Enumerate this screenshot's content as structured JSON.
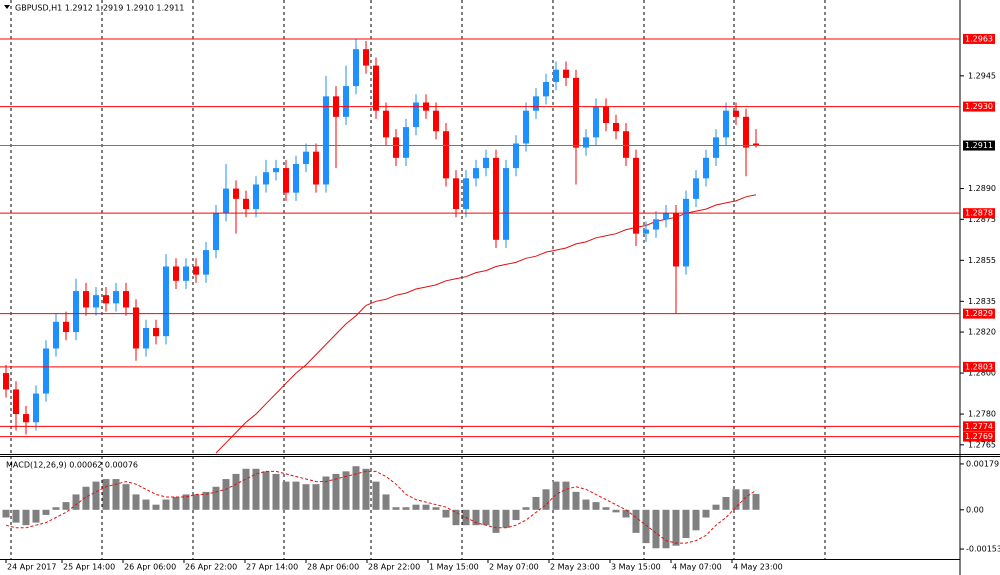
{
  "chart_data": {
    "type": "candlestick",
    "title": "GBPUSD,H1  1.2912 1.2919 1.2910 1.2911",
    "colors": {
      "up": "#1e90ff",
      "down": "#ff0000",
      "ma": "#e01010",
      "level": "#ff0000",
      "price_line": "#4682b4"
    },
    "ylim": [
      1.2761,
      1.2982
    ],
    "yticks": [
      1.2945,
      {
        "value": 1.289,
        "label": "1.2890"
      },
      1.2875,
      1.2855,
      1.2835,
      {
        "value": 1.282,
        "label": "1.2820"
      },
      {
        "value": 1.28,
        "label": "1.2800"
      },
      {
        "value": 1.278,
        "label": "1.2780"
      },
      1.2765
    ],
    "xlim": [
      -0.6,
      95.4
    ],
    "xticks": [
      {
        "value": 0,
        "label": "24 Apr 2017"
      },
      {
        "value": 5.6,
        "label": "25 Apr 14:00"
      },
      {
        "value": 11.7,
        "label": "26 Apr 06:00"
      },
      {
        "value": 17.8,
        "label": "26 Apr 22:00"
      },
      {
        "value": 23.9,
        "label": "27 Apr 14:00"
      },
      {
        "value": 30,
        "label": "28 Apr 06:00"
      },
      {
        "value": 36.1,
        "label": "28 Apr 22:00"
      },
      {
        "value": 42.2,
        "label": "1 May 15:00"
      },
      {
        "value": 48.2,
        "label": "2 May 07:00"
      },
      {
        "value": 54.3,
        "label": "2 May 23:00"
      },
      {
        "value": 60.4,
        "label": "3 May 15:00"
      },
      {
        "value": 66.5,
        "label": "4 May 07:00"
      },
      {
        "value": 72.6,
        "label": "4 May 23:00"
      }
    ],
    "levels": [
      1.2963,
      {
        "value": 1.293,
        "label": "1.2930"
      },
      {
        "value": 1.2878,
        "label": "1.2878"
      },
      1.2829,
      1.2803,
      1.2774,
      1.2769
    ],
    "price_line": 1.2911,
    "candles": [
      [
        1.28,
        1.2804,
        1.2788,
        1.2792
      ],
      [
        1.2792,
        1.2796,
        1.2772,
        1.278
      ],
      [
        1.278,
        1.2784,
        1.277,
        1.2776
      ],
      [
        1.2776,
        1.2794,
        1.2772,
        1.279
      ],
      [
        1.279,
        1.2816,
        1.2786,
        1.2812
      ],
      [
        1.2812,
        1.2829,
        1.2808,
        1.2825
      ],
      [
        1.2825,
        1.283,
        1.2816,
        1.282
      ],
      [
        1.282,
        1.2846,
        1.2816,
        1.284
      ],
      [
        1.284,
        1.2844,
        1.2828,
        1.2832
      ],
      [
        1.2832,
        1.2842,
        1.2828,
        1.2838
      ],
      [
        1.2838,
        1.2842,
        1.283,
        1.2834
      ],
      [
        1.2834,
        1.2844,
        1.283,
        1.284
      ],
      [
        1.284,
        1.2844,
        1.2828,
        1.2832
      ],
      [
        1.2832,
        1.2836,
        1.2806,
        1.2812
      ],
      [
        1.2812,
        1.2826,
        1.2808,
        1.2822
      ],
      [
        1.2822,
        1.2826,
        1.2814,
        1.2818
      ],
      [
        1.2818,
        1.2858,
        1.2814,
        1.2852
      ],
      [
        1.2852,
        1.2856,
        1.2841,
        1.2845
      ],
      [
        1.2845,
        1.2856,
        1.2841,
        1.2852
      ],
      [
        1.2852,
        1.2856,
        1.2844,
        1.2848
      ],
      [
        1.2848,
        1.2864,
        1.2844,
        1.286
      ],
      [
        1.286,
        1.2882,
        1.2856,
        1.2878
      ],
      [
        1.2878,
        1.2902,
        1.2874,
        1.289
      ],
      [
        1.289,
        1.2894,
        1.2868,
        1.2885
      ],
      [
        1.2885,
        1.2889,
        1.2876,
        1.288
      ],
      [
        1.288,
        1.2896,
        1.2876,
        1.2892
      ],
      [
        1.2892,
        1.2904,
        1.2888,
        1.2898
      ],
      [
        1.2898,
        1.2904,
        1.2894,
        1.29
      ],
      [
        1.29,
        1.2904,
        1.2884,
        1.2888
      ],
      [
        1.2888,
        1.2906,
        1.2884,
        1.2902
      ],
      [
        1.2902,
        1.2912,
        1.2898,
        1.2908
      ],
      [
        1.2908,
        1.2912,
        1.2888,
        1.2892
      ],
      [
        1.2892,
        1.2945,
        1.2888,
        1.2935
      ],
      [
        1.2935,
        1.294,
        1.29,
        1.2925
      ],
      [
        1.2925,
        1.295,
        1.2921,
        1.294
      ],
      [
        1.294,
        1.2963,
        1.2936,
        1.2958
      ],
      [
        1.2958,
        1.2962,
        1.2946,
        1.295
      ],
      [
        1.295,
        1.2954,
        1.2924,
        1.2928
      ],
      [
        1.2928,
        1.2932,
        1.2911,
        1.2915
      ],
      [
        1.2915,
        1.2919,
        1.2901,
        1.2905
      ],
      [
        1.2905,
        1.2924,
        1.2901,
        1.292
      ],
      [
        1.292,
        1.2936,
        1.2916,
        1.2932
      ],
      [
        1.2932,
        1.2936,
        1.2924,
        1.2928
      ],
      [
        1.2928,
        1.2932,
        1.2914,
        1.2918
      ],
      [
        1.2918,
        1.2922,
        1.2891,
        1.2895
      ],
      [
        1.2895,
        1.2899,
        1.2876,
        1.288
      ],
      [
        1.288,
        1.2899,
        1.2876,
        1.2895
      ],
      [
        1.2895,
        1.2904,
        1.2891,
        1.29
      ],
      [
        1.29,
        1.2909,
        1.2896,
        1.2905
      ],
      [
        1.2905,
        1.2909,
        1.2861,
        1.2865
      ],
      [
        1.2865,
        1.2904,
        1.2861,
        1.29
      ],
      [
        1.29,
        1.2916,
        1.2896,
        1.2912
      ],
      [
        1.2912,
        1.2932,
        1.2908,
        1.2928
      ],
      [
        1.2928,
        1.2939,
        1.2924,
        1.2935
      ],
      [
        1.2935,
        1.2946,
        1.2931,
        1.2942
      ],
      [
        1.2942,
        1.2952,
        1.2938,
        1.2948
      ],
      [
        1.2948,
        1.2952,
        1.294,
        1.2944
      ],
      [
        1.2944,
        1.2948,
        1.2892,
        1.291
      ],
      [
        1.291,
        1.2919,
        1.2906,
        1.2915
      ],
      [
        1.2915,
        1.2934,
        1.2911,
        1.293
      ],
      [
        1.293,
        1.2934,
        1.2918,
        1.2922
      ],
      [
        1.2922,
        1.2926,
        1.2914,
        1.2918
      ],
      [
        1.2918,
        1.2922,
        1.2901,
        1.2905
      ],
      [
        1.2905,
        1.2909,
        1.2862,
        1.2868
      ],
      [
        1.2868,
        1.2874,
        1.2864,
        1.287
      ],
      [
        1.287,
        1.2879,
        1.2866,
        1.2875
      ],
      [
        1.2875,
        1.2882,
        1.2871,
        1.2878
      ],
      [
        1.2878,
        1.2882,
        1.2829,
        1.2852
      ],
      [
        1.2852,
        1.2889,
        1.2848,
        1.2885
      ],
      [
        1.2885,
        1.2899,
        1.2881,
        1.2895
      ],
      [
        1.2895,
        1.2909,
        1.2891,
        1.2905
      ],
      [
        1.2905,
        1.2919,
        1.2901,
        1.2915
      ],
      [
        1.2915,
        1.2932,
        1.2911,
        1.2928
      ],
      [
        1.2928,
        1.2932,
        1.2921,
        1.2925
      ],
      [
        1.2925,
        1.2929,
        1.2896,
        1.291
      ],
      [
        1.2912,
        1.2919,
        1.291,
        1.2911
      ]
    ],
    "ma": [
      null,
      null,
      null,
      null,
      null,
      null,
      null,
      null,
      null,
      null,
      null,
      null,
      null,
      null,
      null,
      null,
      null,
      null,
      null,
      null,
      null,
      1.2761,
      1.2766,
      1.2771,
      1.2776,
      1.278,
      1.2785,
      1.279,
      1.2795,
      1.28,
      1.2804,
      1.2809,
      1.2814,
      1.2819,
      1.2824,
      1.2828,
      1.2833,
      1.2835,
      1.2836,
      1.2838,
      1.2839,
      1.2841,
      1.2842,
      1.2843,
      1.2845,
      1.2846,
      1.2847,
      1.2849,
      1.285,
      1.2852,
      1.2853,
      1.2854,
      1.2856,
      1.2857,
      1.2859,
      1.286,
      1.2861,
      1.2863,
      1.2864,
      1.2866,
      1.2867,
      1.2868,
      1.287,
      1.2871,
      1.2872,
      1.2874,
      1.2875,
      1.2876,
      1.2878,
      1.2879,
      1.288,
      1.2882,
      1.2883,
      1.2884,
      1.2886,
      1.2887
    ],
    "macd": {
      "label": "MACD(12,26,9) 0.00062 0.00076",
      "ylim": [
        -0.00188,
        0.00206
      ],
      "yticks": [
        0.00179,
        {
          "value": 0,
          "label": "0.00"
        },
        -0.00153
      ],
      "hist_color": "#808080",
      "signal_color": "#e01010",
      "hist": [
        -0.0003,
        -0.0005,
        -0.0006,
        -0.0005,
        -0.0002,
        0.0001,
        0.0003,
        0.0006,
        0.0009,
        0.0011,
        0.0012,
        0.0012,
        0.001,
        0.0006,
        0.0004,
        0.0002,
        0.0004,
        0.0005,
        0.0006,
        0.0006,
        0.0007,
        0.0009,
        0.0012,
        0.0014,
        0.0016,
        0.0016,
        0.0015,
        0.0014,
        0.0011,
        0.0011,
        0.001,
        0.001,
        0.0013,
        0.0014,
        0.0015,
        0.0017,
        0.0016,
        0.0011,
        0.0006,
        0.0001,
        0.0001,
        0.0002,
        0.0002,
        0.0001,
        -0.0003,
        -0.0006,
        -0.0006,
        -0.0006,
        -0.0006,
        -0.0009,
        -0.0007,
        -0.0004,
        0.0001,
        0.0005,
        0.0008,
        0.0011,
        0.0011,
        0.0007,
        0.0004,
        0.0003,
        0.0001,
        -0.0001,
        -0.0003,
        -0.0009,
        -0.0013,
        -0.0015,
        -0.0015,
        -0.0014,
        -0.0011,
        -0.0008,
        -0.0003,
        0.0002,
        0.0005,
        0.0008,
        0.0008,
        0.00062
      ],
      "signal": [
        -0.0006,
        -0.0007,
        -0.0007,
        -0.0006,
        -0.0005,
        -0.0003,
        -0.0001,
        0.0002,
        0.0005,
        0.0007,
        0.0009,
        0.001,
        0.0011,
        0.001,
        0.0008,
        0.0006,
        0.0005,
        0.0005,
        0.0005,
        0.0006,
        0.0006,
        0.0007,
        0.0008,
        0.001,
        0.0012,
        0.0014,
        0.0015,
        0.0015,
        0.0014,
        0.0013,
        0.0012,
        0.0011,
        0.0011,
        0.0012,
        0.0013,
        0.0014,
        0.0015,
        0.0015,
        0.0013,
        0.001,
        0.0006,
        0.0004,
        0.0003,
        0.0002,
        0.0001,
        -0.0001,
        -0.0003,
        -0.0005,
        -0.0006,
        -0.0007,
        -0.0007,
        -0.0006,
        -0.0004,
        -0.0001,
        0.0002,
        0.0006,
        0.0008,
        0.0009,
        0.0008,
        0.0006,
        0.0004,
        0.0002,
        0,
        -0.0003,
        -0.0006,
        -0.0009,
        -0.0012,
        -0.0013,
        -0.0013,
        -0.0012,
        -0.001,
        -0.0006,
        -0.0003,
        0.0001,
        0.0005,
        0.00076
      ]
    }
  }
}
